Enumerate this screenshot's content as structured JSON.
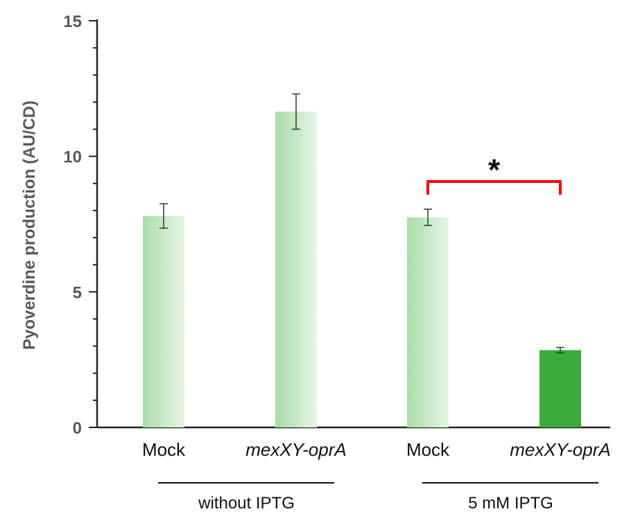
{
  "chart_data": {
    "type": "bar",
    "title": "",
    "ylabel": "Pyoverdine production (AU/CD)",
    "xlabel": "",
    "ylim": [
      0,
      15
    ],
    "yticks": [
      0,
      5,
      10,
      15
    ],
    "minor_tick_step": 1,
    "grid": false,
    "categories": [
      "Mock",
      "mexXY-oprA",
      "Mock",
      "mexXY-oprA"
    ],
    "italic_categories": [
      false,
      true,
      false,
      true
    ],
    "values": [
      7.8,
      11.65,
      7.75,
      2.85
    ],
    "errors": [
      0.45,
      0.65,
      0.3,
      0.1
    ],
    "bar_styles": [
      "gradient",
      "gradient",
      "gradient",
      "solid"
    ],
    "groups": [
      {
        "label": "without IPTG",
        "members": [
          0,
          1
        ]
      },
      {
        "label": "5 mM IPTG",
        "members": [
          2,
          3
        ]
      }
    ],
    "significance": [
      {
        "between": [
          2,
          3
        ],
        "symbol": "*",
        "color": "#ff0000"
      }
    ],
    "colors": {
      "bar_light": "#a8dca8",
      "bar_fade": "#e6f5e6",
      "bar_solid": "#3aaa3a",
      "axis": "#222222"
    }
  }
}
